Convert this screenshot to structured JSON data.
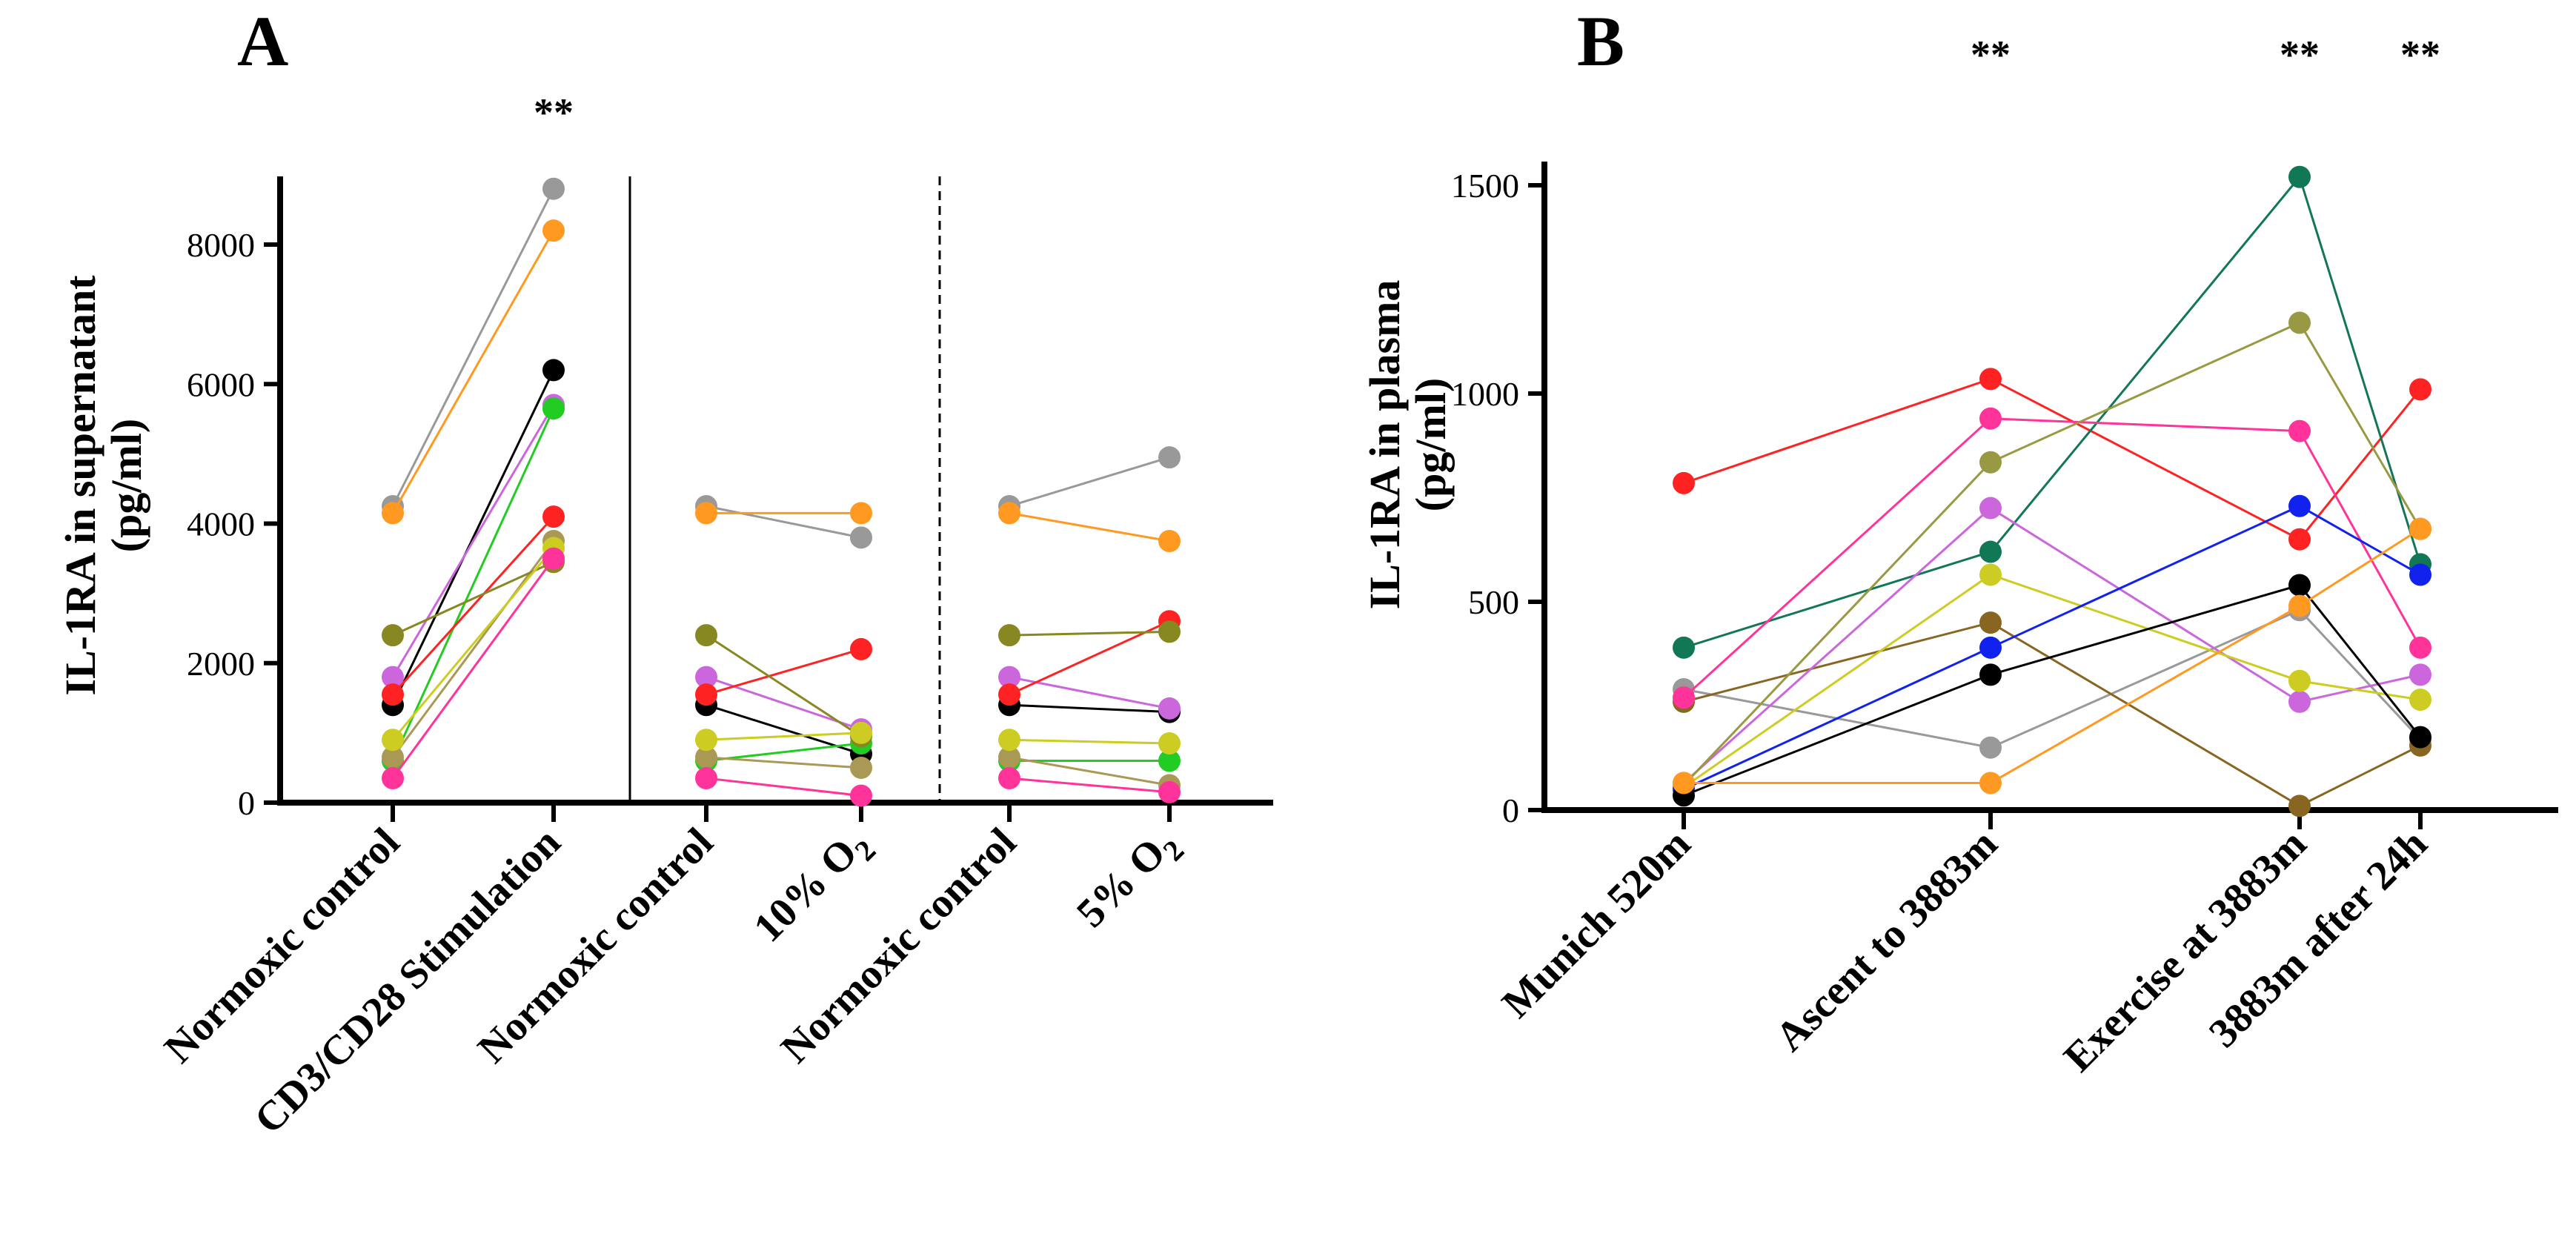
{
  "chart_data": [
    {
      "type": "line",
      "panel": "A",
      "title": "",
      "ylabel_line1": "IL-1RA  in supernatant",
      "ylabel_line2": "(pg/ml)",
      "xlabel": "",
      "ylim": [
        0,
        9000
      ],
      "yticks": [
        0,
        2000,
        4000,
        6000,
        8000
      ],
      "categories": [
        "Normoxic control",
        "CD3/CD28 Stimulation",
        "Normoxic control",
        "10% O2",
        "Normoxic control",
        "5% O2"
      ],
      "x_labels": [
        {
          "main": "Normoxic control",
          "sub": ""
        },
        {
          "main": "CD3/CD28 Stimulation",
          "sub": ""
        },
        {
          "main": "Normoxic control",
          "sub": ""
        },
        {
          "main": "10% O",
          "sub": "2"
        },
        {
          "main": "Normoxic control",
          "sub": ""
        },
        {
          "main": "5% O",
          "sub": "2"
        }
      ],
      "significance": [
        {
          "category_index": 1,
          "label": "**"
        }
      ],
      "separators": [
        {
          "after_category": 1,
          "style": "solid"
        },
        {
          "after_category": 3,
          "style": "dashed"
        }
      ],
      "groups": [
        [
          0,
          1
        ],
        [
          2,
          3
        ],
        [
          4,
          5
        ]
      ],
      "series": [
        {
          "name": "grey",
          "color": "#999999",
          "values": [
            4250,
            8800,
            4250,
            3800,
            4250,
            4950
          ]
        },
        {
          "name": "orange",
          "color": "#ff9922",
          "values": [
            4150,
            8200,
            4150,
            4150,
            4150,
            3750
          ]
        },
        {
          "name": "black",
          "color": "#000000",
          "values": [
            1400,
            6200,
            1400,
            700,
            1400,
            1300
          ]
        },
        {
          "name": "violet",
          "color": "#cc66dd",
          "values": [
            1800,
            5700,
            1800,
            1050,
            1800,
            1350
          ]
        },
        {
          "name": "green",
          "color": "#22cc22",
          "values": [
            600,
            5650,
            600,
            850,
            600,
            600
          ]
        },
        {
          "name": "red",
          "color": "#ff2222",
          "values": [
            1550,
            4100,
            1550,
            2200,
            1550,
            2600
          ]
        },
        {
          "name": "khaki",
          "color": "#aa9955",
          "values": [
            650,
            3750,
            650,
            500,
            650,
            250
          ]
        },
        {
          "name": "olive",
          "color": "#888822",
          "values": [
            2400,
            3450,
            2400,
            950,
            2400,
            2450
          ]
        },
        {
          "name": "yellow",
          "color": "#cccc22",
          "values": [
            900,
            3650,
            900,
            1000,
            900,
            850
          ]
        },
        {
          "name": "pink",
          "color": "#ff3399",
          "values": [
            350,
            3500,
            350,
            100,
            350,
            150
          ]
        }
      ]
    },
    {
      "type": "line",
      "panel": "B",
      "title": "",
      "ylabel_line1": "IL-1RA  in plasma",
      "ylabel_line2": "(pg/ml)",
      "xlabel": "",
      "ylim": [
        0,
        1500
      ],
      "yticks": [
        0,
        500,
        1000,
        1500
      ],
      "categories": [
        "Munich 520m",
        "Ascent to 3883m",
        "Exercise at 3883m",
        "3883m after 24h"
      ],
      "x_labels": [
        {
          "main": "Munich 520m",
          "sub": ""
        },
        {
          "main": "Ascent to 3883m",
          "sub": ""
        },
        {
          "main": "Exercise at 3883m",
          "sub": ""
        },
        {
          "main": "3883m after 24h",
          "sub": ""
        }
      ],
      "significance": [
        {
          "category_index": 1,
          "label": "**"
        },
        {
          "category_index": 2,
          "label": "**"
        },
        {
          "category_index": 3,
          "label": "**"
        }
      ],
      "series": [
        {
          "name": "red",
          "color": "#ff2222",
          "values": [
            785,
            1035,
            650,
            1010
          ]
        },
        {
          "name": "teal",
          "color": "#117755",
          "values": [
            390,
            620,
            1520,
            590
          ]
        },
        {
          "name": "grey",
          "color": "#999999",
          "values": [
            290,
            150,
            480,
            170
          ]
        },
        {
          "name": "brown",
          "color": "#886622",
          "values": [
            260,
            450,
            10,
            155
          ]
        },
        {
          "name": "pink",
          "color": "#ff3399",
          "values": [
            270,
            940,
            910,
            390
          ]
        },
        {
          "name": "violet",
          "color": "#cc66dd",
          "values": [
            65,
            725,
            260,
            325
          ]
        },
        {
          "name": "olive",
          "color": "#999944",
          "values": [
            60,
            835,
            1170,
            675
          ]
        },
        {
          "name": "yellow",
          "color": "#cccc22",
          "values": [
            55,
            565,
            310,
            265
          ]
        },
        {
          "name": "blue",
          "color": "#1122ee",
          "values": [
            50,
            390,
            730,
            565
          ]
        },
        {
          "name": "black",
          "color": "#000000",
          "values": [
            35,
            325,
            540,
            175
          ]
        },
        {
          "name": "orange",
          "color": "#ff9922",
          "values": [
            65,
            65,
            490,
            675
          ]
        }
      ]
    }
  ]
}
